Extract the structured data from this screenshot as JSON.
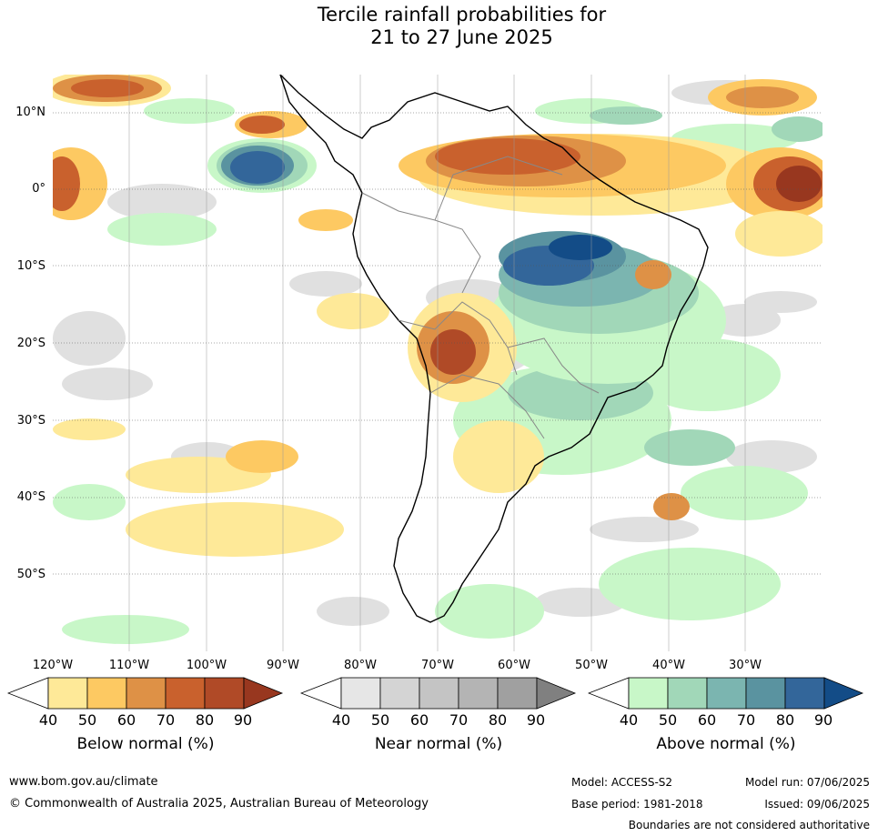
{
  "title": {
    "line1": "Tercile rainfall probabilities for",
    "line2": "21 to 27 June 2025"
  },
  "lat_labels": [
    "10°N",
    "0°",
    "10°S",
    "20°S",
    "30°S",
    "40°S",
    "50°S"
  ],
  "lon_labels": [
    "120°W",
    "110°W",
    "100°W",
    "90°W",
    "80°W",
    "70°W",
    "60°W",
    "50°W",
    "40°W",
    "30°W"
  ],
  "colorbars": [
    {
      "title": "Below normal (%)",
      "ticks": [
        "40",
        "50",
        "60",
        "70",
        "80",
        "90"
      ],
      "colors": [
        "#ffffff",
        "#fee998",
        "#fdc962",
        "#de9146",
        "#c9612d",
        "#b04a27",
        "#98371f"
      ]
    },
    {
      "title": "Near normal (%)",
      "ticks": [
        "40",
        "50",
        "60",
        "70",
        "80",
        "90"
      ],
      "colors": [
        "#ffffff",
        "#e6e6e6",
        "#d4d4d4",
        "#c4c4c4",
        "#b4b4b4",
        "#a0a0a0",
        "#808080"
      ]
    },
    {
      "title": "Above normal (%)",
      "ticks": [
        "40",
        "50",
        "60",
        "70",
        "80",
        "90"
      ],
      "colors": [
        "#ffffff",
        "#c8f7c8",
        "#a1d7b8",
        "#7bb5b0",
        "#5a93a0",
        "#33669a",
        "#134c87"
      ]
    }
  ],
  "footer": {
    "url": "www.bom.gov.au/climate",
    "copyright": "© Commonwealth of Australia 2025, Australian Bureau of Meteorology",
    "model": "Model: ACCESS-S2",
    "model_run": "Model run: 07/06/2025",
    "base_period": "Base period: 1981-2018",
    "issued": "Issued: 09/06/2025",
    "disclaimer": "Boundaries are not considered authoritative"
  }
}
